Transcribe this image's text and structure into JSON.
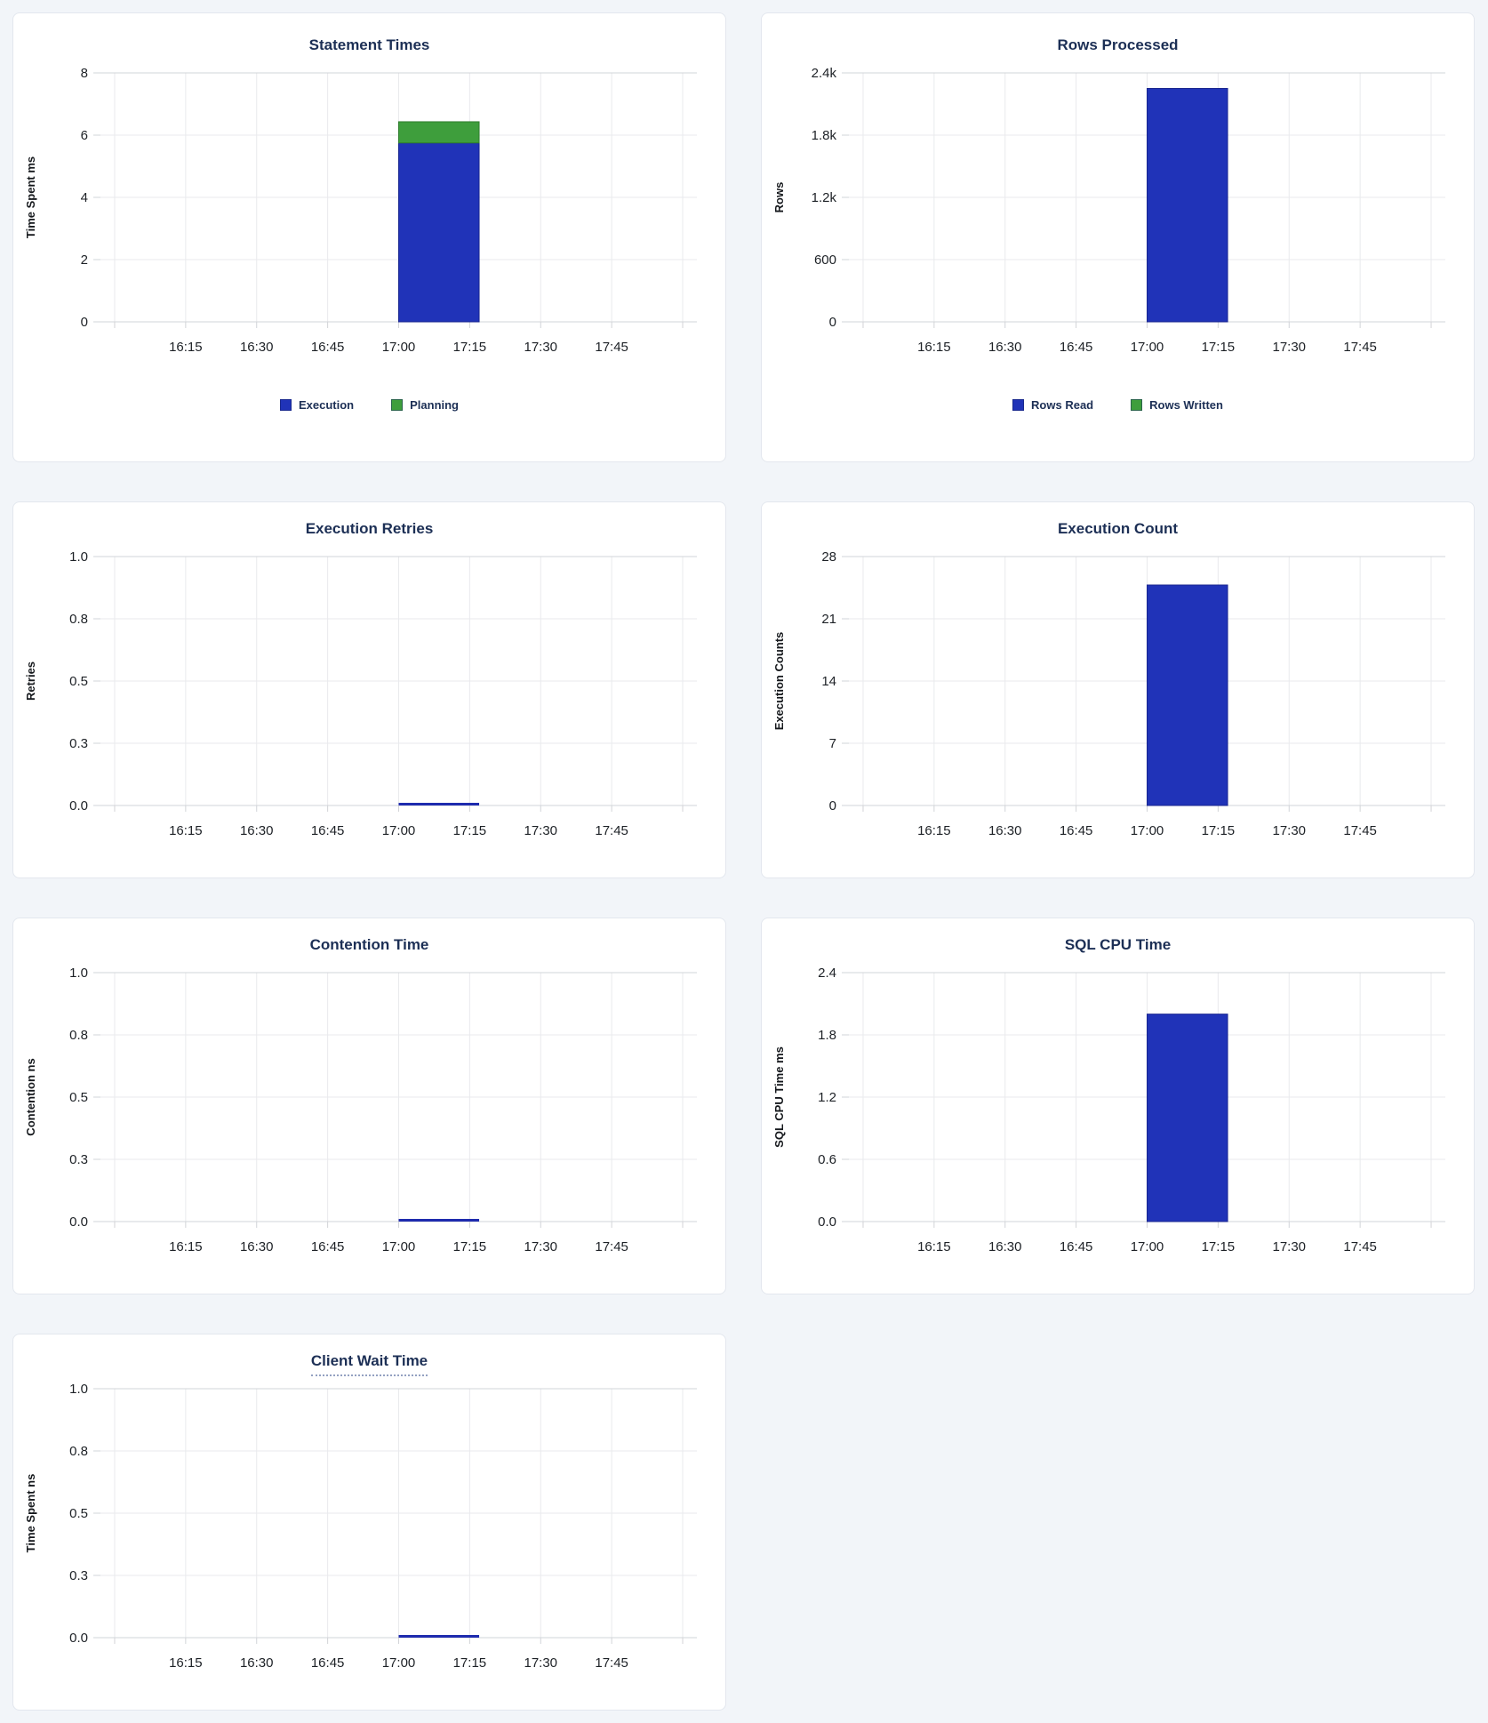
{
  "page": {
    "background_color": "#f2f5f9",
    "card_background": "#ffffff"
  },
  "palette": {
    "bar_blue": "#2033b8",
    "bar_blue_stroke": "#18258f",
    "bar_green": "#3e9e3c",
    "bar_green_stroke": "#2f7d2e",
    "flat_line_blue": "#1e2bae",
    "title_navy": "#1c2f55",
    "tick_text": "#1d2126",
    "grid_inner": "#e9eaed",
    "grid_edge": "#d2d4d8"
  },
  "x_axis": {
    "domain": [
      "15:57",
      "18:03"
    ],
    "grid_times": [
      "16:00",
      "16:15",
      "16:30",
      "16:45",
      "17:00",
      "17:15",
      "17:30",
      "17:45",
      "18:00"
    ],
    "tick_labels": [
      "16:15",
      "16:30",
      "16:45",
      "17:00",
      "17:15",
      "17:30",
      "17:45"
    ]
  },
  "chart_data": [
    {
      "id": "statement-times",
      "title": "Statement Times",
      "type": "bar",
      "ylabel": "Time Spent ms",
      "y_ticks": {
        "values": [
          0,
          2,
          4,
          6,
          8
        ],
        "labels": [
          "0",
          "2",
          "4",
          "6",
          "8"
        ]
      },
      "y_max": 8,
      "bar_interval": {
        "start": "17:00",
        "end": "17:17"
      },
      "series": [
        {
          "name": "Execution",
          "value": 5.75,
          "color": "bar_blue",
          "stroke": "bar_blue_stroke"
        },
        {
          "name": "Planning",
          "value": 0.68,
          "color": "bar_green",
          "stroke": "bar_green_stroke"
        }
      ],
      "legend": true
    },
    {
      "id": "rows-processed",
      "title": "Rows Processed",
      "type": "bar",
      "ylabel": "Rows",
      "y_ticks": {
        "values": [
          0,
          600,
          1200,
          1800,
          2400
        ],
        "labels": [
          "0",
          "600",
          "1.2k",
          "1.8k",
          "2.4k"
        ]
      },
      "y_max": 2400,
      "bar_interval": {
        "start": "17:00",
        "end": "17:17"
      },
      "series": [
        {
          "name": "Rows Read",
          "value": 2250,
          "color": "bar_blue",
          "stroke": "bar_blue_stroke"
        },
        {
          "name": "Rows Written",
          "value": 0,
          "color": "bar_green",
          "stroke": "bar_green_stroke"
        }
      ],
      "legend": true
    },
    {
      "id": "execution-retries",
      "title": "Execution Retries",
      "type": "line",
      "ylabel": "Retries",
      "y_ticks": {
        "values": [
          0,
          0.25,
          0.5,
          0.75,
          1
        ],
        "labels": [
          "0.0",
          "0.3",
          "0.5",
          "0.8",
          "1.0"
        ]
      },
      "y_max": 1,
      "line_interval": {
        "start": "17:00",
        "end": "17:17"
      },
      "series": [
        {
          "name": "Retries",
          "value": 0,
          "color": "flat_line_blue"
        }
      ],
      "legend": false
    },
    {
      "id": "execution-count",
      "title": "Execution Count",
      "type": "bar",
      "ylabel": "Execution Counts",
      "y_ticks": {
        "values": [
          0,
          7,
          14,
          21,
          28
        ],
        "labels": [
          "0",
          "7",
          "14",
          "21",
          "28"
        ]
      },
      "y_max": 28,
      "bar_interval": {
        "start": "17:00",
        "end": "17:17"
      },
      "series": [
        {
          "name": "Execution Count",
          "value": 24.8,
          "color": "bar_blue",
          "stroke": "bar_blue_stroke"
        }
      ],
      "legend": false
    },
    {
      "id": "contention-time",
      "title": "Contention Time",
      "type": "line",
      "ylabel": "Contention ns",
      "y_ticks": {
        "values": [
          0,
          0.25,
          0.5,
          0.75,
          1
        ],
        "labels": [
          "0.0",
          "0.3",
          "0.5",
          "0.8",
          "1.0"
        ]
      },
      "y_max": 1,
      "line_interval": {
        "start": "17:00",
        "end": "17:17"
      },
      "series": [
        {
          "name": "Contention",
          "value": 0,
          "color": "flat_line_blue"
        }
      ],
      "legend": false
    },
    {
      "id": "sql-cpu-time",
      "title": "SQL CPU Time",
      "type": "bar",
      "ylabel": "SQL CPU Time ms",
      "y_ticks": {
        "values": [
          0,
          0.6,
          1.2,
          1.8,
          2.4
        ],
        "labels": [
          "0.0",
          "0.6",
          "1.2",
          "1.8",
          "2.4"
        ]
      },
      "y_max": 2.4,
      "bar_interval": {
        "start": "17:00",
        "end": "17:17"
      },
      "series": [
        {
          "name": "SQL CPU Time",
          "value": 2.0,
          "color": "bar_blue",
          "stroke": "bar_blue_stroke"
        }
      ],
      "legend": false
    },
    {
      "id": "client-wait-time",
      "title": "Client Wait Time",
      "type": "line",
      "ylabel": "Time Spent ns",
      "y_ticks": {
        "values": [
          0,
          0.25,
          0.5,
          0.75,
          1
        ],
        "labels": [
          "0.0",
          "0.3",
          "0.5",
          "0.8",
          "1.0"
        ]
      },
      "y_max": 1,
      "line_interval": {
        "start": "17:00",
        "end": "17:17"
      },
      "series": [
        {
          "name": "Client Wait",
          "value": 0,
          "color": "flat_line_blue"
        }
      ],
      "legend": false,
      "title_underline_dotted": true
    }
  ]
}
